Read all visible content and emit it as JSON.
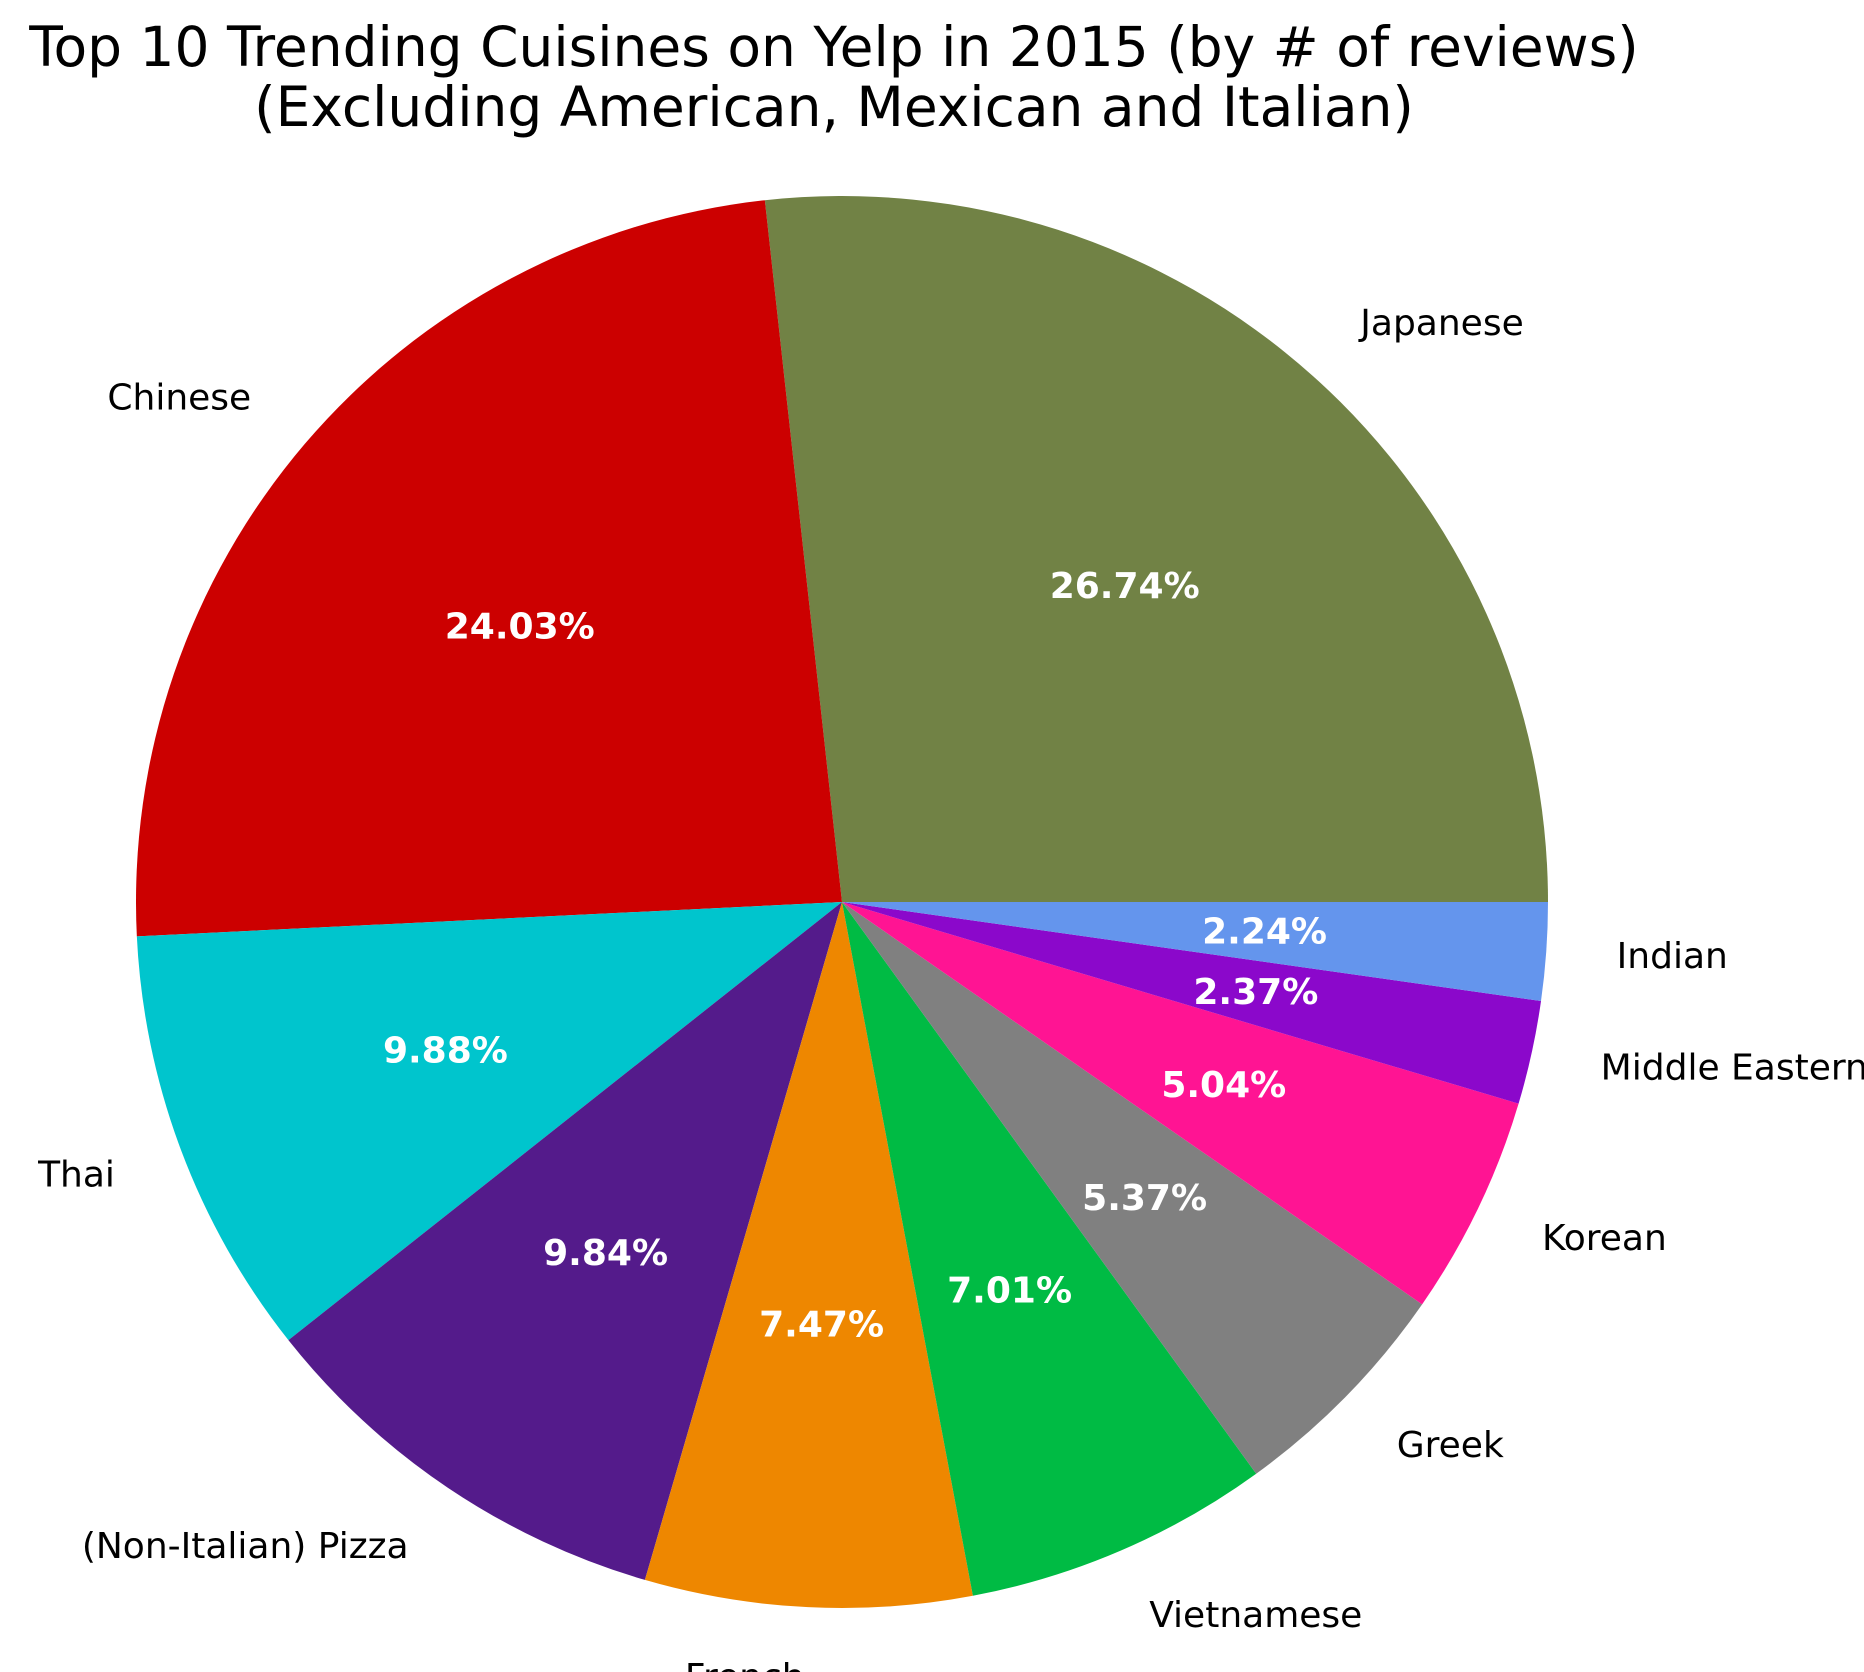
{
  "chart_data": {
    "type": "pie",
    "title": "Top 10 Trending Cuisines on Yelp in 2015 (by # of reviews)",
    "subtitle": "(Excluding American, Mexican and Italian)",
    "start_angle_deg": 0,
    "direction": "counterclockwise",
    "slices": [
      {
        "label": "Japanese",
        "value": 26.74,
        "pct_label": "26.74%",
        "color": "#718245"
      },
      {
        "label": "Chinese",
        "value": 24.03,
        "pct_label": "24.03%",
        "color": "#cc0000"
      },
      {
        "label": "Thai",
        "value": 9.88,
        "pct_label": "9.88%",
        "color": "#00c5cd"
      },
      {
        "label": "(Non-Italian) Pizza",
        "value": 9.84,
        "pct_label": "9.84%",
        "color": "#541b8b"
      },
      {
        "label": "French",
        "value": 7.47,
        "pct_label": "7.47%",
        "color": "#ee8700"
      },
      {
        "label": "Vietnamese",
        "value": 7.01,
        "pct_label": "7.01%",
        "color": "#00bb44"
      },
      {
        "label": "Greek",
        "value": 5.37,
        "pct_label": "5.37%",
        "color": "#808080"
      },
      {
        "label": "Korean",
        "value": 5.04,
        "pct_label": "5.04%",
        "color": "#ff1493"
      },
      {
        "label": "Middle Eastern",
        "value": 2.37,
        "pct_label": "2.37%",
        "color": "#8b08cb"
      },
      {
        "label": "Indian",
        "value": 2.24,
        "pct_label": "2.24%",
        "color": "#6495ed"
      }
    ]
  }
}
